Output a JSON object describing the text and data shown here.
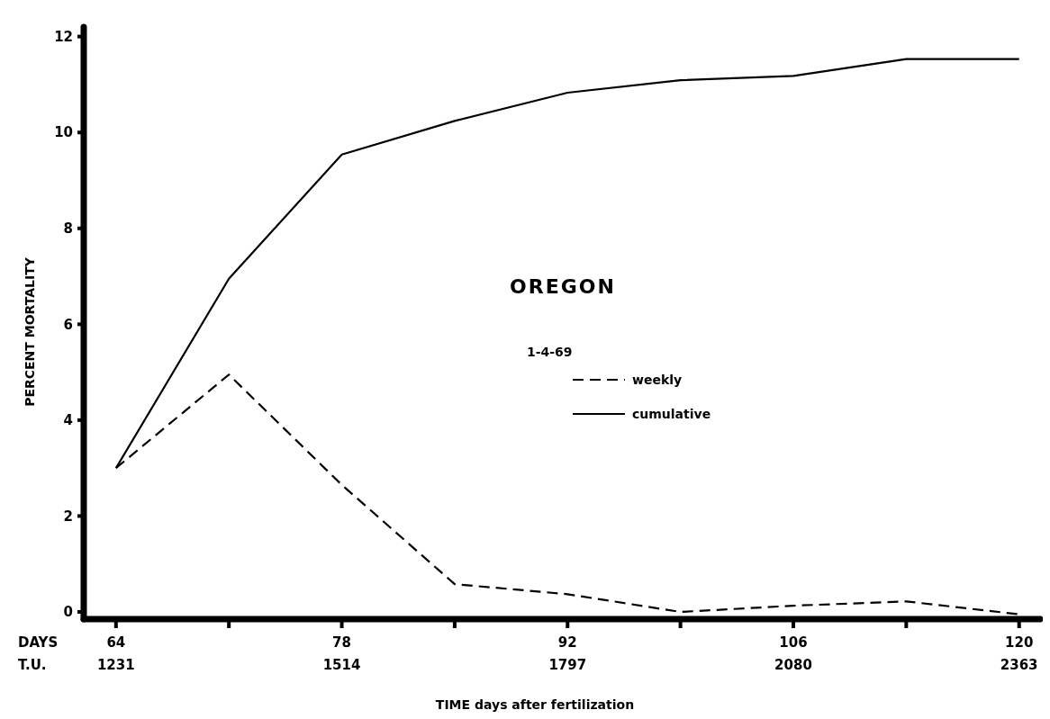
{
  "chart_data": {
    "type": "line",
    "title": "OREGON",
    "xlabel": "TIME days after fertilization",
    "ylabel": "PERCENT MORTALITY",
    "x2label": "T.U.",
    "annotations": [
      "DAYS"
    ],
    "legend_title": "1-4-69",
    "legend": "right",
    "x": [
      64,
      71,
      78,
      85,
      92,
      99,
      106,
      113,
      120
    ],
    "series": [
      {
        "name": "weekly",
        "color": "#000000",
        "line_style": "dashed",
        "values": [
          3.0,
          4.95,
          2.65,
          0.58,
          0.37,
          0.0,
          0.13,
          0.22,
          -0.05
        ]
      },
      {
        "name": "cumulative",
        "color": "#000000",
        "line_style": "solid",
        "values": [
          3.0,
          6.95,
          9.54,
          10.24,
          10.83,
          11.09,
          11.18,
          11.53,
          11.53
        ]
      }
    ],
    "xlim": [
      62,
      121.3
    ],
    "xticks": [
      64,
      {
        "value": 71,
        "label": null
      },
      78,
      {
        "value": 85,
        "label": null
      },
      92,
      {
        "value": 99,
        "label": null
      },
      106,
      {
        "value": 113,
        "label": null
      },
      120
    ],
    "x2lim": [
      1190.57,
      2389.3
    ],
    "x2ticks": [
      1231,
      1514,
      1797,
      2080,
      2363
    ],
    "ylim": [
      -0.15,
      12.2
    ],
    "yticks": [
      0,
      2,
      4,
      6,
      8,
      10,
      12
    ],
    "grid": false
  }
}
